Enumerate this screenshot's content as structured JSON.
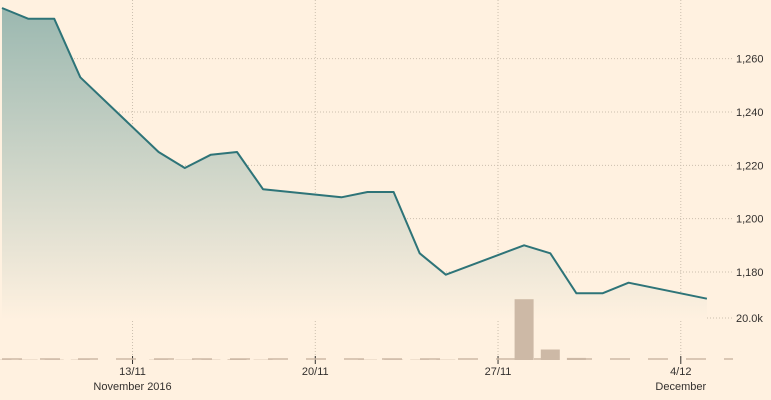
{
  "chart_data": {
    "type": "line",
    "title": "",
    "xlabel": "",
    "ylabel": "",
    "price": {
      "x": [
        "2016-11-08",
        "2016-11-09",
        "2016-11-10",
        "2016-11-11",
        "2016-11-14",
        "2016-11-15",
        "2016-11-16",
        "2016-11-17",
        "2016-11-18",
        "2016-11-21",
        "2016-11-22",
        "2016-11-23",
        "2016-11-24",
        "2016-11-25",
        "2016-11-28",
        "2016-11-29",
        "2016-11-30",
        "2016-12-01",
        "2016-12-02",
        "2016-12-05",
        "2016-12-06"
      ],
      "values": [
        1279,
        1275,
        1275,
        1253,
        1225,
        1219,
        1224,
        1225,
        1211,
        1208,
        1210,
        1210,
        1187,
        1179,
        1190,
        1187,
        1172,
        1172,
        1176,
        1170,
        null
      ],
      "ylim": [
        1162,
        1282
      ],
      "yticks": [
        1180,
        1200,
        1220,
        1240,
        1260
      ],
      "ytick_labels": [
        "1,180",
        "1,200",
        "1,220",
        "1,240",
        "1,260"
      ]
    },
    "volume": {
      "x": [
        "2016-11-08",
        "2016-11-09",
        "2016-11-10",
        "2016-11-11",
        "2016-11-14",
        "2016-11-15",
        "2016-11-16",
        "2016-11-17",
        "2016-11-18",
        "2016-11-21",
        "2016-11-22",
        "2016-11-23",
        "2016-11-24",
        "2016-11-25",
        "2016-11-28",
        "2016-11-29",
        "2016-11-30",
        "2016-12-01",
        "2016-12-02",
        "2016-12-05"
      ],
      "values": [
        150,
        150,
        150,
        150,
        150,
        150,
        150,
        300,
        150,
        0,
        150,
        150,
        150,
        150,
        29000,
        5000,
        1000,
        0,
        0,
        0
      ],
      "ylim": [
        0,
        34800
      ],
      "yticks": [
        20000
      ],
      "ytick_labels": [
        "20.0k"
      ]
    },
    "x_start": "2016-11-08",
    "x_end": "2016-12-06",
    "xticks": [
      "2016-11-13",
      "2016-11-20",
      "2016-11-27",
      "2016-12-04"
    ],
    "xtick_labels": [
      "13/11",
      "20/11",
      "27/11",
      "4/12"
    ],
    "month_labels": [
      {
        "label": "November 2016",
        "x": "2016-11-13"
      },
      {
        "label": "December",
        "x": "2016-12-04"
      }
    ],
    "grid": true,
    "colors": {
      "background": "#fff1e0",
      "line": "#2e7478",
      "area_top": "#9bb8b0",
      "area_bottom": "#fff1e0",
      "volume_bar": "#cdb9a6",
      "grid": "#cbbfae",
      "axis_text": "#33302e"
    }
  }
}
